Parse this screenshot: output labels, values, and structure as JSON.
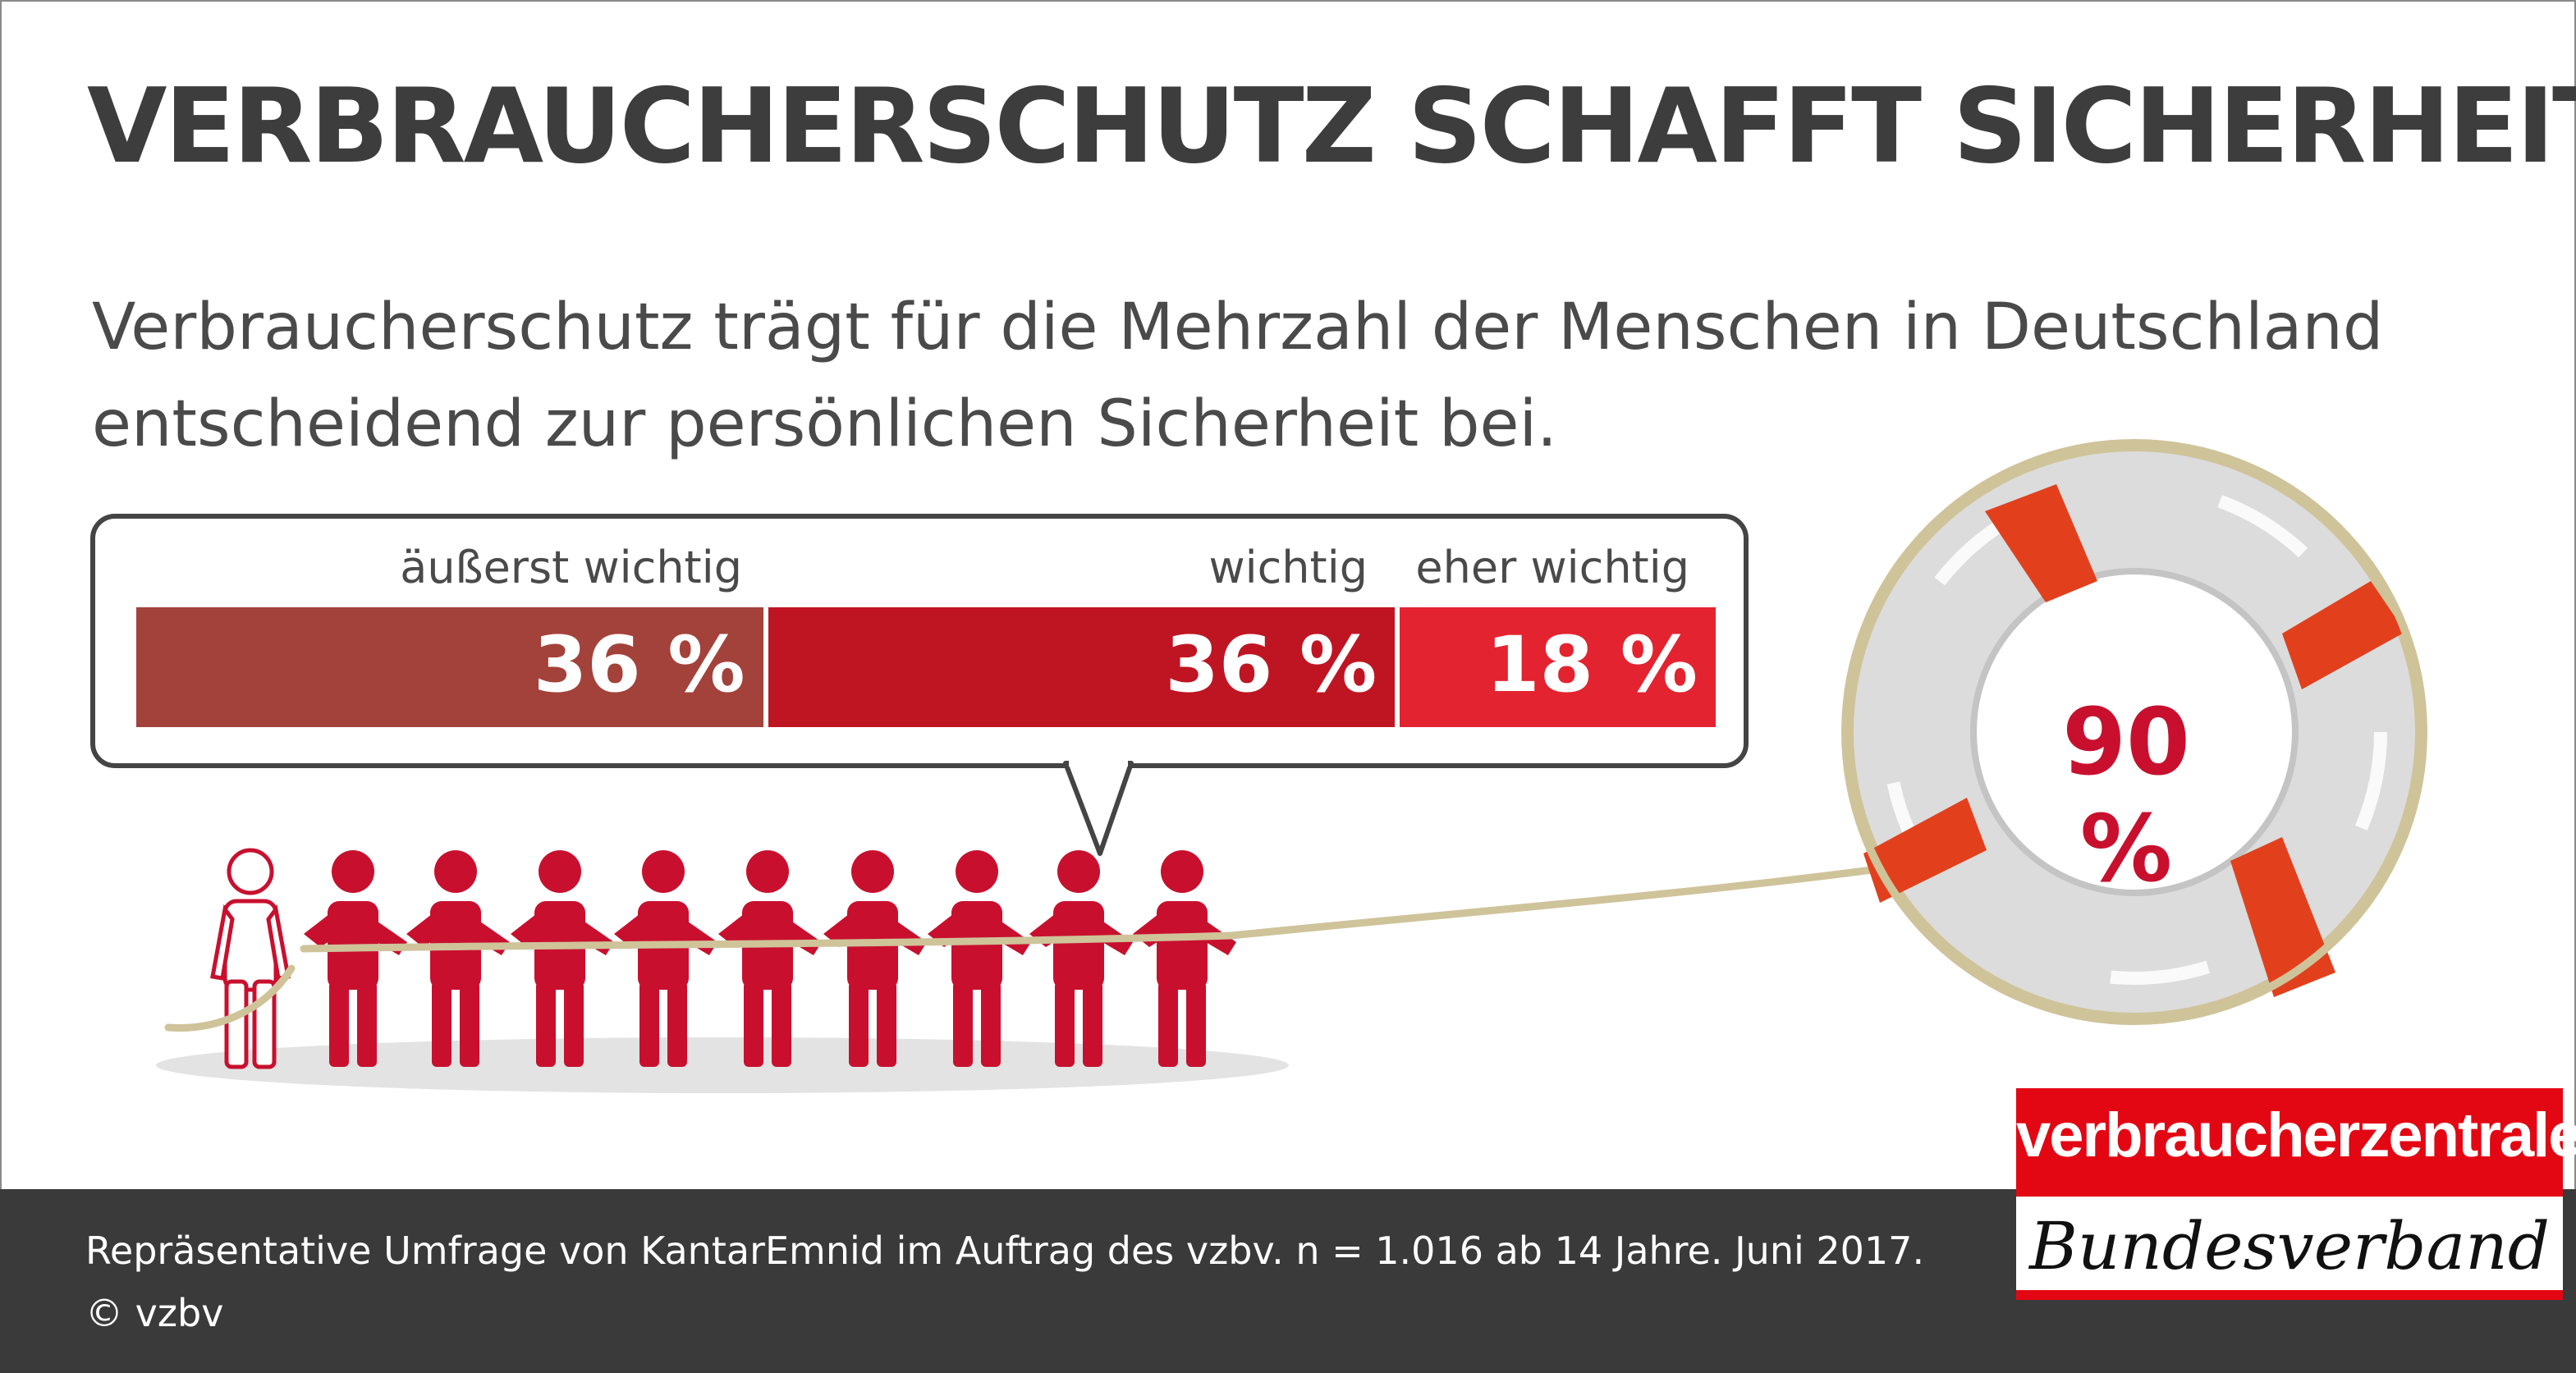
{
  "title": "VERBRAUCHERSCHUTZ SCHAFFT SICHERHEIT",
  "subtitle": "Verbraucherschutz trägt für die Mehrzahl der Menschen in Deutschland entscheidend zur persönlichen Sicherheit bei.",
  "footer": {
    "source": "Repräsentative Umfrage von KantarEmnid im Auftrag des vzbv. n = 1.016 ab 14 Jahre. Juni 2017.",
    "copyright": "© vzbv"
  },
  "logo": {
    "name": "verbraucherzentrale",
    "sub": "Bundesverband"
  },
  "colors": {
    "aeusserst_wichtig": "#a3423a",
    "wichtig": "#bf1522",
    "eher_wichtig": "#e3232f",
    "figure_red": "#c8102e",
    "rope": "#cfc39a",
    "ring_red": "#e2401d",
    "total_text": "#c8102e"
  },
  "icons": [
    "person-figure-icon",
    "rope-icon",
    "lifebuoy-icon"
  ],
  "chart_data": {
    "type": "bar",
    "layout": "stacked horizontal",
    "categories": [
      "äußerst wichtig",
      "wichtig",
      "eher wichtig"
    ],
    "values": [
      36,
      36,
      18
    ],
    "value_labels": [
      "36 %",
      "36 %",
      "18 %"
    ],
    "total": 90,
    "total_label": "90 %",
    "unit": "%"
  }
}
